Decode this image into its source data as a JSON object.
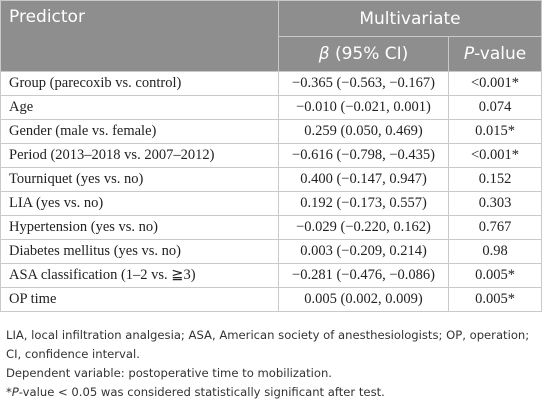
{
  "table": {
    "header": {
      "predictor": "Predictor",
      "group": "Multivariate",
      "beta": {
        "symbol": "β",
        "rest": " (95% CI)"
      },
      "p": {
        "symbol": "P",
        "rest": "-value"
      }
    },
    "rows": [
      [
        "Group (parecoxib vs. control)",
        "−0.365 (−0.563, −0.167)",
        "<0.001*"
      ],
      [
        "Age",
        "−0.010 (−0.021, 0.001)",
        "0.074"
      ],
      [
        "Gender (male vs. female)",
        "0.259 (0.050, 0.469)",
        "0.015*"
      ],
      [
        "Period (2013–2018 vs. 2007–2012)",
        "−0.616 (−0.798, −0.435)",
        "<0.001*"
      ],
      [
        "Tourniquet (yes vs. no)",
        "0.400 (−0.147, 0.947)",
        "0.152"
      ],
      [
        "LIA (yes vs. no)",
        "0.192 (−0.173, 0.557)",
        "0.303"
      ],
      [
        "Hypertension (yes vs. no)",
        "−0.029 (−0.220, 0.162)",
        "0.767"
      ],
      [
        "Diabetes mellitus (yes vs. no)",
        "0.003 (−0.209, 0.214)",
        "0.98"
      ],
      [
        "ASA classification (1–2 vs. ≧3)",
        "−0.281 (−0.476, −0.086)",
        "0.005*"
      ],
      [
        "OP time",
        "0.005 (0.002, 0.009)",
        "0.005*"
      ]
    ]
  },
  "footnotes": {
    "abbreviations": "LIA, local infiltration analgesia; ASA, American society of anesthesiologists; OP, operation; CI, confidence interval.",
    "dependent": "Dependent variable: postoperative time to mobilization.",
    "significance": {
      "star": "*",
      "symbol": "P",
      "rest": "-value < 0.05 was considered statistically significant after test."
    }
  }
}
